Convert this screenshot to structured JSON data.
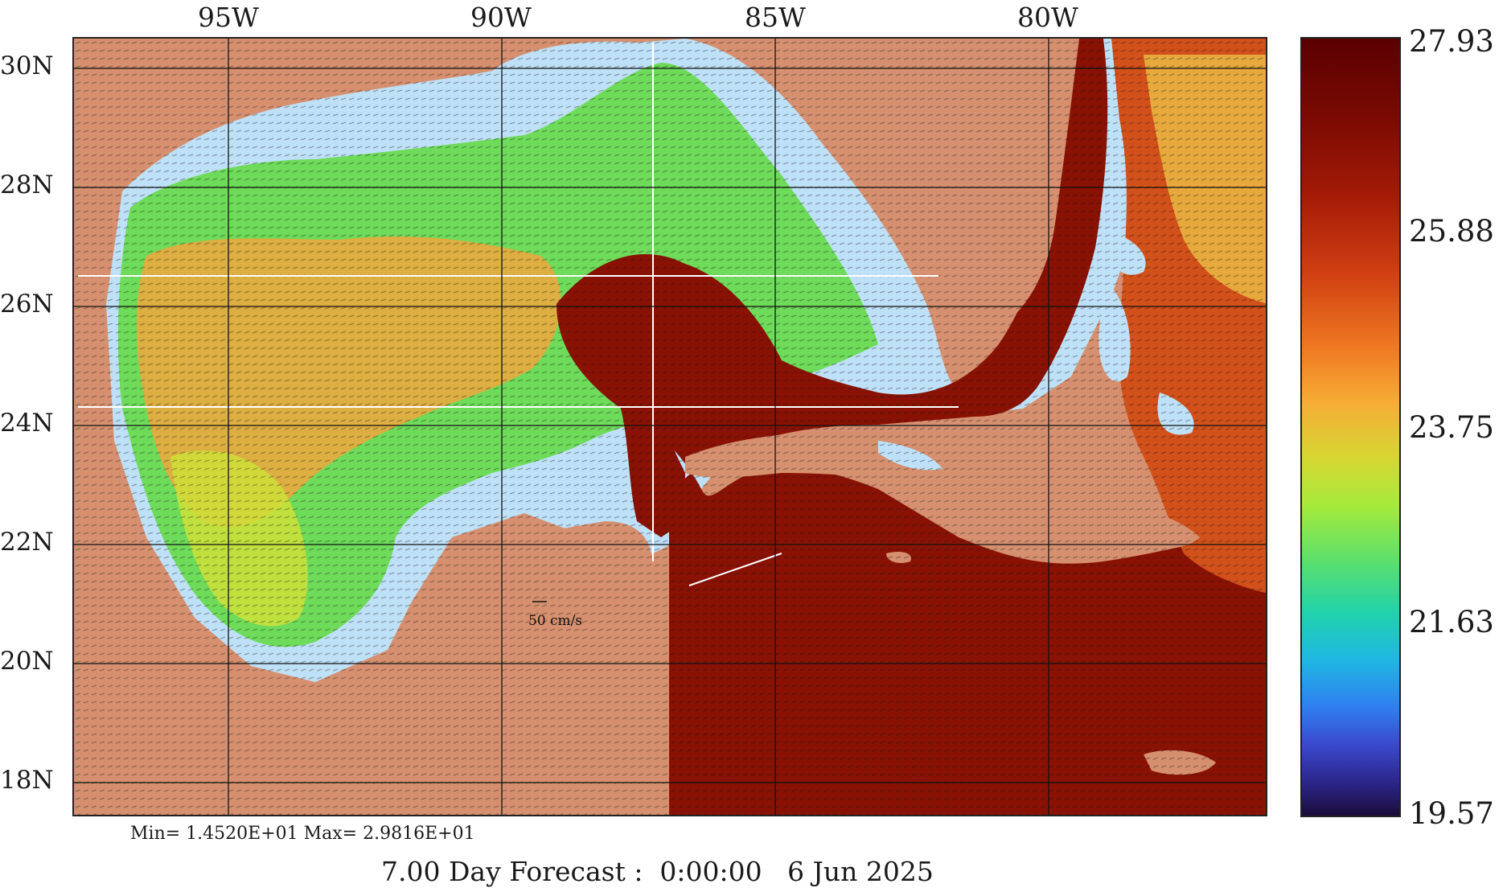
{
  "map": {
    "lon_labels": [
      "95W",
      "90W",
      "85W",
      "80W"
    ],
    "lat_labels": [
      "30N",
      "28N",
      "26N",
      "24N",
      "22N",
      "20N",
      "18N"
    ],
    "scale_label": "50 cm/s",
    "colors": {
      "land": "#d6906f",
      "shelf_water": "#bfe1f8",
      "warm_core": "#8a1204",
      "grid": "#111111"
    }
  },
  "colorbar": {
    "ticks": [
      "27.93",
      "25.88",
      "23.75",
      "21.63",
      "19.57"
    ]
  },
  "stats": {
    "minmax": "Min= 1.4520E+01  Max= 2.9816E+01"
  },
  "footer": {
    "forecast": "7.00 Day Forecast :  0:00:00   6 Jun 2025"
  }
}
